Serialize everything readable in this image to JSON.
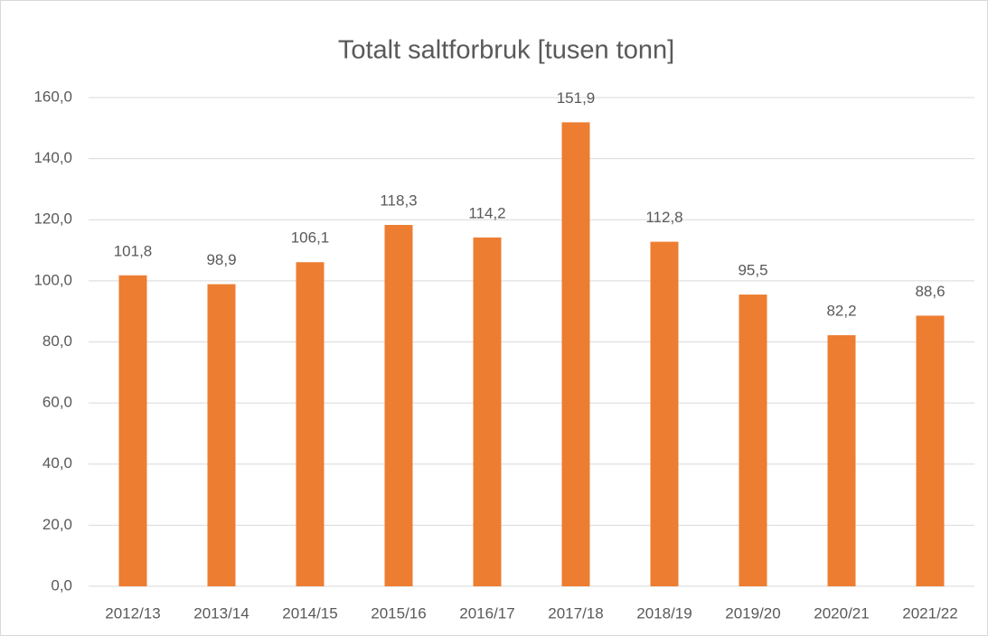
{
  "chart_data": {
    "type": "bar",
    "title": "Totalt saltforbruk [tusen tonn]",
    "categories": [
      "2012/13",
      "2013/14",
      "2014/15",
      "2015/16",
      "2016/17",
      "2017/18",
      "2018/19",
      "2019/20",
      "2020/21",
      "2021/22"
    ],
    "values": [
      101.8,
      98.9,
      106.1,
      118.3,
      114.2,
      151.9,
      112.8,
      95.5,
      82.2,
      88.6
    ],
    "value_labels": [
      "101,8",
      "98,9",
      "106,1",
      "118,3",
      "114,2",
      "151,9",
      "112,8",
      "95,5",
      "82,2",
      "88,6"
    ],
    "color": "#ed7d31",
    "ylim": [
      0,
      160
    ],
    "yticks": [
      {
        "value": 0,
        "label": "0,0"
      },
      {
        "value": 20,
        "label": "20,0"
      },
      {
        "value": 40,
        "label": "40,0"
      },
      {
        "value": 60,
        "label": "60,0"
      },
      {
        "value": 80,
        "label": "80,0"
      },
      {
        "value": 100,
        "label": "100,0"
      },
      {
        "value": 120,
        "label": "120,0"
      },
      {
        "value": 140,
        "label": "140,0"
      },
      {
        "value": 160,
        "label": "160,0"
      }
    ],
    "grid": true
  }
}
